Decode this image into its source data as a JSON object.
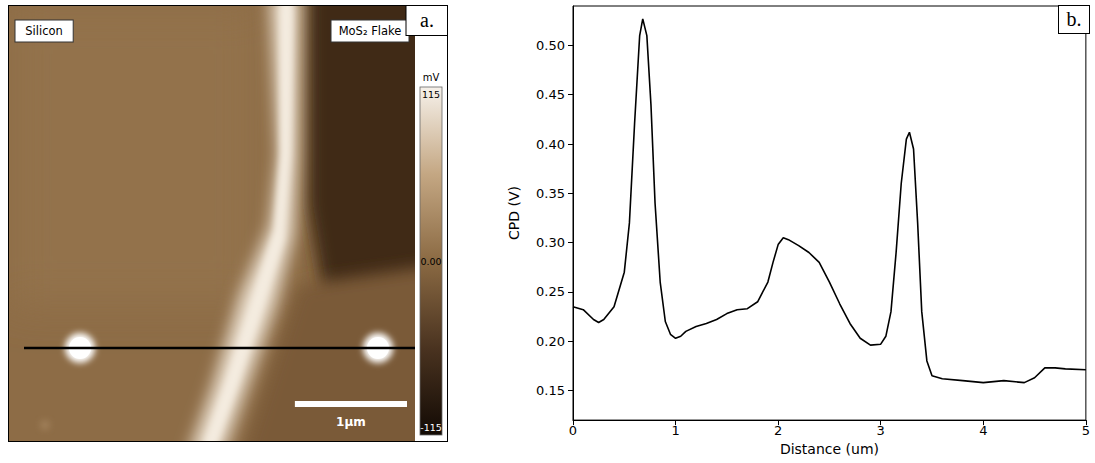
{
  "panel_a": {
    "panel_label": "a.",
    "labels": [
      "Silicon",
      "MoS₂ Flake"
    ],
    "image_width": 3.63,
    "scale_bar": {
      "length": 1,
      "label": "1µm"
    },
    "color_bar": {
      "label": "mV",
      "range": [
        -115,
        115
      ],
      "ticks": [
        {
          "value": 115,
          "label": "115"
        },
        {
          "value": 0,
          "label": "0.00"
        },
        {
          "value": -115,
          "label": "-115"
        }
      ]
    }
  },
  "chart_data": {
    "type": "line",
    "panel_label": "b.",
    "x_label": "Distance (um)",
    "y_label": "CPD (V)",
    "x": [
      0,
      0.1,
      0.2,
      0.25,
      0.3,
      0.4,
      0.5,
      0.55,
      0.6,
      0.65,
      0.68,
      0.72,
      0.76,
      0.8,
      0.85,
      0.9,
      0.95,
      1.0,
      1.05,
      1.1,
      1.2,
      1.3,
      1.4,
      1.5,
      1.6,
      1.7,
      1.8,
      1.9,
      1.95,
      2.0,
      2.05,
      2.1,
      2.2,
      2.3,
      2.4,
      2.5,
      2.6,
      2.7,
      2.8,
      2.9,
      3.0,
      3.05,
      3.1,
      3.15,
      3.2,
      3.25,
      3.28,
      3.32,
      3.36,
      3.4,
      3.45,
      3.5,
      3.6,
      3.8,
      4.0,
      4.2,
      4.4,
      4.5,
      4.6,
      4.7,
      4.8,
      5.0
    ],
    "values": [
      0.235,
      0.232,
      0.222,
      0.219,
      0.222,
      0.235,
      0.27,
      0.32,
      0.42,
      0.51,
      0.527,
      0.51,
      0.44,
      0.34,
      0.26,
      0.22,
      0.207,
      0.203,
      0.205,
      0.21,
      0.215,
      0.218,
      0.222,
      0.228,
      0.232,
      0.233,
      0.24,
      0.26,
      0.28,
      0.298,
      0.305,
      0.303,
      0.297,
      0.29,
      0.28,
      0.26,
      0.238,
      0.218,
      0.203,
      0.196,
      0.197,
      0.205,
      0.23,
      0.29,
      0.36,
      0.405,
      0.412,
      0.395,
      0.32,
      0.23,
      0.18,
      0.165,
      0.162,
      0.16,
      0.158,
      0.16,
      0.158,
      0.163,
      0.173,
      0.173,
      0.172,
      0.171
    ],
    "color": "#000000",
    "xlim": [
      0,
      5
    ],
    "xticks": [
      0,
      1,
      2,
      3,
      4,
      5
    ],
    "ylim": [
      0.12,
      0.54
    ],
    "yticks": [
      {
        "value": 0.15,
        "label": "0.15"
      },
      {
        "value": 0.2,
        "label": "0.20"
      },
      {
        "value": 0.25,
        "label": "0.25"
      },
      {
        "value": 0.3,
        "label": "0.30"
      },
      {
        "value": 0.35,
        "label": "0.35"
      },
      {
        "value": 0.4,
        "label": "0.40"
      },
      {
        "value": 0.45,
        "label": "0.45"
      },
      {
        "value": 0.5,
        "label": "0.50"
      }
    ],
    "grid": false
  }
}
